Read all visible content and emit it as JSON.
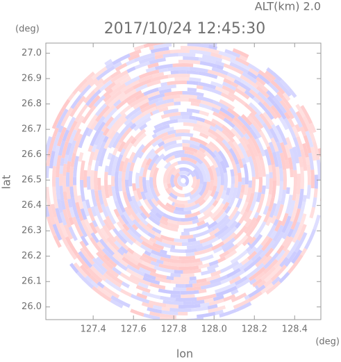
{
  "chart_data": {
    "type": "polar-scan",
    "title": "2017/10/24 12:45:30",
    "annotation": "ALT(km) 2.0",
    "x_label": "lon",
    "y_label": "lat",
    "x_unit": "(deg)",
    "y_unit": "(deg)",
    "xlim": [
      127.165,
      128.53
    ],
    "ylim": [
      25.95,
      27.04
    ],
    "xticks": [
      127.4,
      127.6,
      127.8,
      {
        "value": 128,
        "label": "128.0"
      },
      128.2,
      128.4
    ],
    "yticks": [
      {
        "value": 26,
        "label": "26.0"
      },
      26.1,
      26.2,
      26.3,
      26.4,
      26.5,
      26.6,
      26.7,
      26.8,
      26.9,
      {
        "value": 27,
        "label": "27.0"
      }
    ],
    "colors": [
      "#ffc8c8",
      "#c8c8ff"
    ]
  }
}
